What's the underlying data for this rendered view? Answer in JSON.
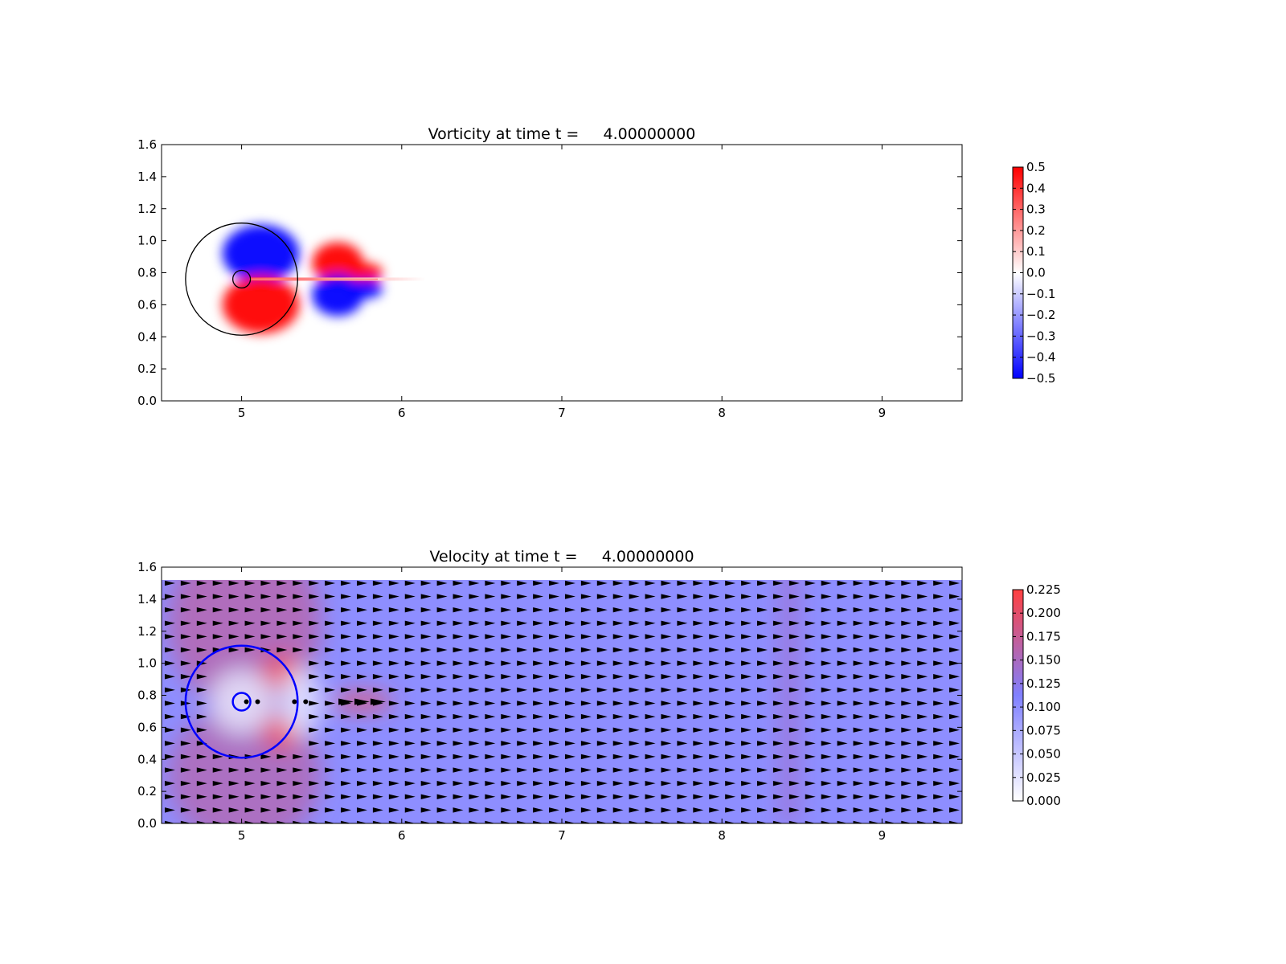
{
  "chart_data": [
    {
      "type": "heatmap",
      "title": "Vorticity at time t =     4.00000000",
      "xlabel": "",
      "ylabel": "",
      "xlim": [
        4.5,
        9.5
      ],
      "ylim": [
        0.0,
        1.6
      ],
      "x_ticks": [
        "5",
        "6",
        "7",
        "8",
        "9"
      ],
      "y_ticks": [
        "0.0",
        "0.2",
        "0.4",
        "0.6",
        "0.8",
        "1.0",
        "1.2",
        "1.4",
        "1.6"
      ],
      "field": "vorticity",
      "colormap": [
        "#0000ff",
        "#ffffff",
        "#ff0000"
      ],
      "colorbar": {
        "range": [
          -0.5,
          0.5
        ],
        "ticks": [
          "0.5",
          "0.4",
          "0.3",
          "0.2",
          "0.1",
          "0.0",
          "−0.1",
          "−0.2",
          "−0.3",
          "−0.4",
          "−0.5"
        ]
      },
      "overlays": {
        "circles": [
          {
            "cx": 5.0,
            "cy": 0.76,
            "r": 0.35,
            "color": "#000000"
          },
          {
            "cx": 5.0,
            "cy": 0.76,
            "r": 0.055,
            "color": "#000000"
          }
        ]
      },
      "features": [
        {
          "kind": "lobe",
          "sign": "negative",
          "x": 5.12,
          "y": 0.92,
          "rx": 0.24,
          "ry": 0.18,
          "value": -0.5
        },
        {
          "kind": "lobe",
          "sign": "positive",
          "x": 5.12,
          "y": 0.6,
          "rx": 0.24,
          "ry": 0.18,
          "value": 0.5
        },
        {
          "kind": "lobe",
          "sign": "positive",
          "x": 5.6,
          "y": 0.86,
          "rx": 0.16,
          "ry": 0.13,
          "value": 0.5
        },
        {
          "kind": "lobe",
          "sign": "negative",
          "x": 5.6,
          "y": 0.66,
          "rx": 0.16,
          "ry": 0.13,
          "value": -0.5
        },
        {
          "kind": "lobe",
          "sign": "positive",
          "x": 5.78,
          "y": 0.8,
          "rx": 0.1,
          "ry": 0.06,
          "value": 0.5
        },
        {
          "kind": "lobe",
          "sign": "negative",
          "x": 5.78,
          "y": 0.7,
          "rx": 0.1,
          "ry": 0.06,
          "value": -0.5
        },
        {
          "kind": "tail",
          "x0": 5.05,
          "x1": 6.15,
          "y": 0.76,
          "value": 0.35
        }
      ]
    },
    {
      "type": "heatmap",
      "title": "Velocity at time t =     4.00000000",
      "xlabel": "",
      "ylabel": "",
      "xlim": [
        4.5,
        9.5
      ],
      "ylim": [
        0.0,
        1.6
      ],
      "x_ticks": [
        "5",
        "6",
        "7",
        "8",
        "9"
      ],
      "y_ticks": [
        "0.0",
        "0.2",
        "0.4",
        "0.6",
        "0.8",
        "1.0",
        "1.2",
        "1.4",
        "1.6"
      ],
      "field": "velocity magnitude with quiver arrows",
      "domain_ymax": 1.52,
      "background_speed": 0.1,
      "colormap": [
        "#ffffff",
        "#8080ff",
        "#ff4040"
      ],
      "colorbar": {
        "range": [
          0.0,
          0.225
        ],
        "ticks": [
          "0.225",
          "0.200",
          "0.175",
          "0.150",
          "0.125",
          "0.100",
          "0.075",
          "0.050",
          "0.025",
          "0.000"
        ]
      },
      "overlays": {
        "circles": [
          {
            "cx": 5.0,
            "cy": 0.76,
            "r": 0.35,
            "color": "#0000ff"
          },
          {
            "cx": 5.0,
            "cy": 0.76,
            "r": 0.055,
            "color": "#0000ff"
          }
        ],
        "points": [
          {
            "x": 5.03,
            "y": 0.76
          },
          {
            "x": 5.1,
            "y": 0.76
          },
          {
            "x": 5.33,
            "y": 0.76
          },
          {
            "x": 5.4,
            "y": 0.76
          }
        ]
      },
      "quiver": {
        "x_start": 4.5,
        "x_end": 9.5,
        "nx": 50,
        "y_start": 0.0,
        "y_end": 1.5,
        "ny": 19,
        "direction": "+x"
      },
      "features": [
        {
          "kind": "fast",
          "x": 5.02,
          "y": 1.25,
          "rx": 0.48,
          "ry": 0.55,
          "value": 0.165
        },
        {
          "kind": "fast",
          "x": 5.02,
          "y": 0.3,
          "rx": 0.48,
          "ry": 0.45,
          "value": 0.16
        },
        {
          "kind": "fast",
          "x": 5.25,
          "y": 0.95,
          "rx": 0.12,
          "ry": 0.1,
          "value": 0.225
        },
        {
          "kind": "fast",
          "x": 5.25,
          "y": 0.57,
          "rx": 0.12,
          "ry": 0.1,
          "value": 0.225
        },
        {
          "kind": "fast",
          "x": 5.75,
          "y": 0.76,
          "rx": 0.2,
          "ry": 0.05,
          "value": 0.225
        },
        {
          "kind": "slow",
          "x": 5.0,
          "y": 0.76,
          "rx": 0.2,
          "ry": 0.2,
          "value": 0.02
        },
        {
          "kind": "slow",
          "x": 5.37,
          "y": 0.76,
          "rx": 0.13,
          "ry": 0.22,
          "value": 0.02
        },
        {
          "kind": "band",
          "x": 8.42,
          "width": 0.1,
          "value": 0.14
        }
      ]
    }
  ]
}
